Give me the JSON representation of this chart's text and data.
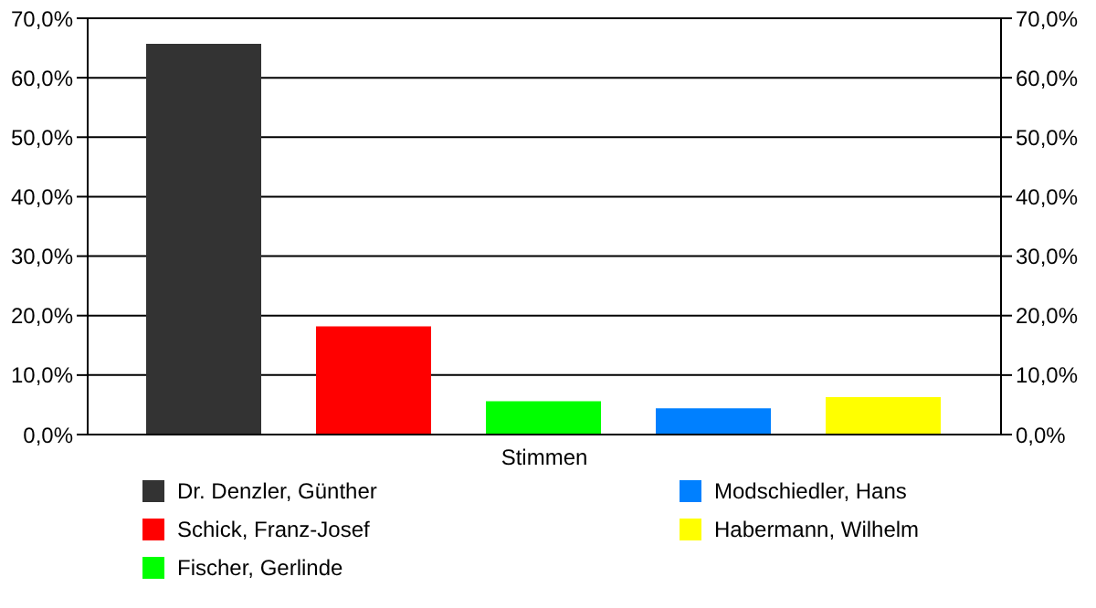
{
  "chart_data": {
    "type": "bar",
    "categories": [
      "Stimmen"
    ],
    "series": [
      {
        "name": "Dr. Denzler, Günther",
        "color": "#333333",
        "values": [
          65.7
        ]
      },
      {
        "name": "Schick, Franz-Josef",
        "color": "#ff0000",
        "values": [
          18.2
        ]
      },
      {
        "name": "Fischer, Gerlinde",
        "color": "#00ff00",
        "values": [
          5.6
        ]
      },
      {
        "name": "Modschiedler, Hans",
        "color": "#0080ff",
        "values": [
          4.4
        ]
      },
      {
        "name": "Habermann, Wilhelm",
        "color": "#ffff00",
        "values": [
          6.3
        ]
      }
    ],
    "ylim": [
      0,
      70
    ],
    "yticks": [
      {
        "value": 0,
        "label": "0,0%"
      },
      {
        "value": 10,
        "label": "10,0%"
      },
      {
        "value": 20,
        "label": "20,0%"
      },
      {
        "value": 30,
        "label": "30,0%"
      },
      {
        "value": 40,
        "label": "40,0%"
      },
      {
        "value": 50,
        "label": "50,0%"
      },
      {
        "value": 60,
        "label": "60,0%"
      },
      {
        "value": 70,
        "label": "70,0%"
      }
    ],
    "grid": "y",
    "legend": "bottom"
  }
}
